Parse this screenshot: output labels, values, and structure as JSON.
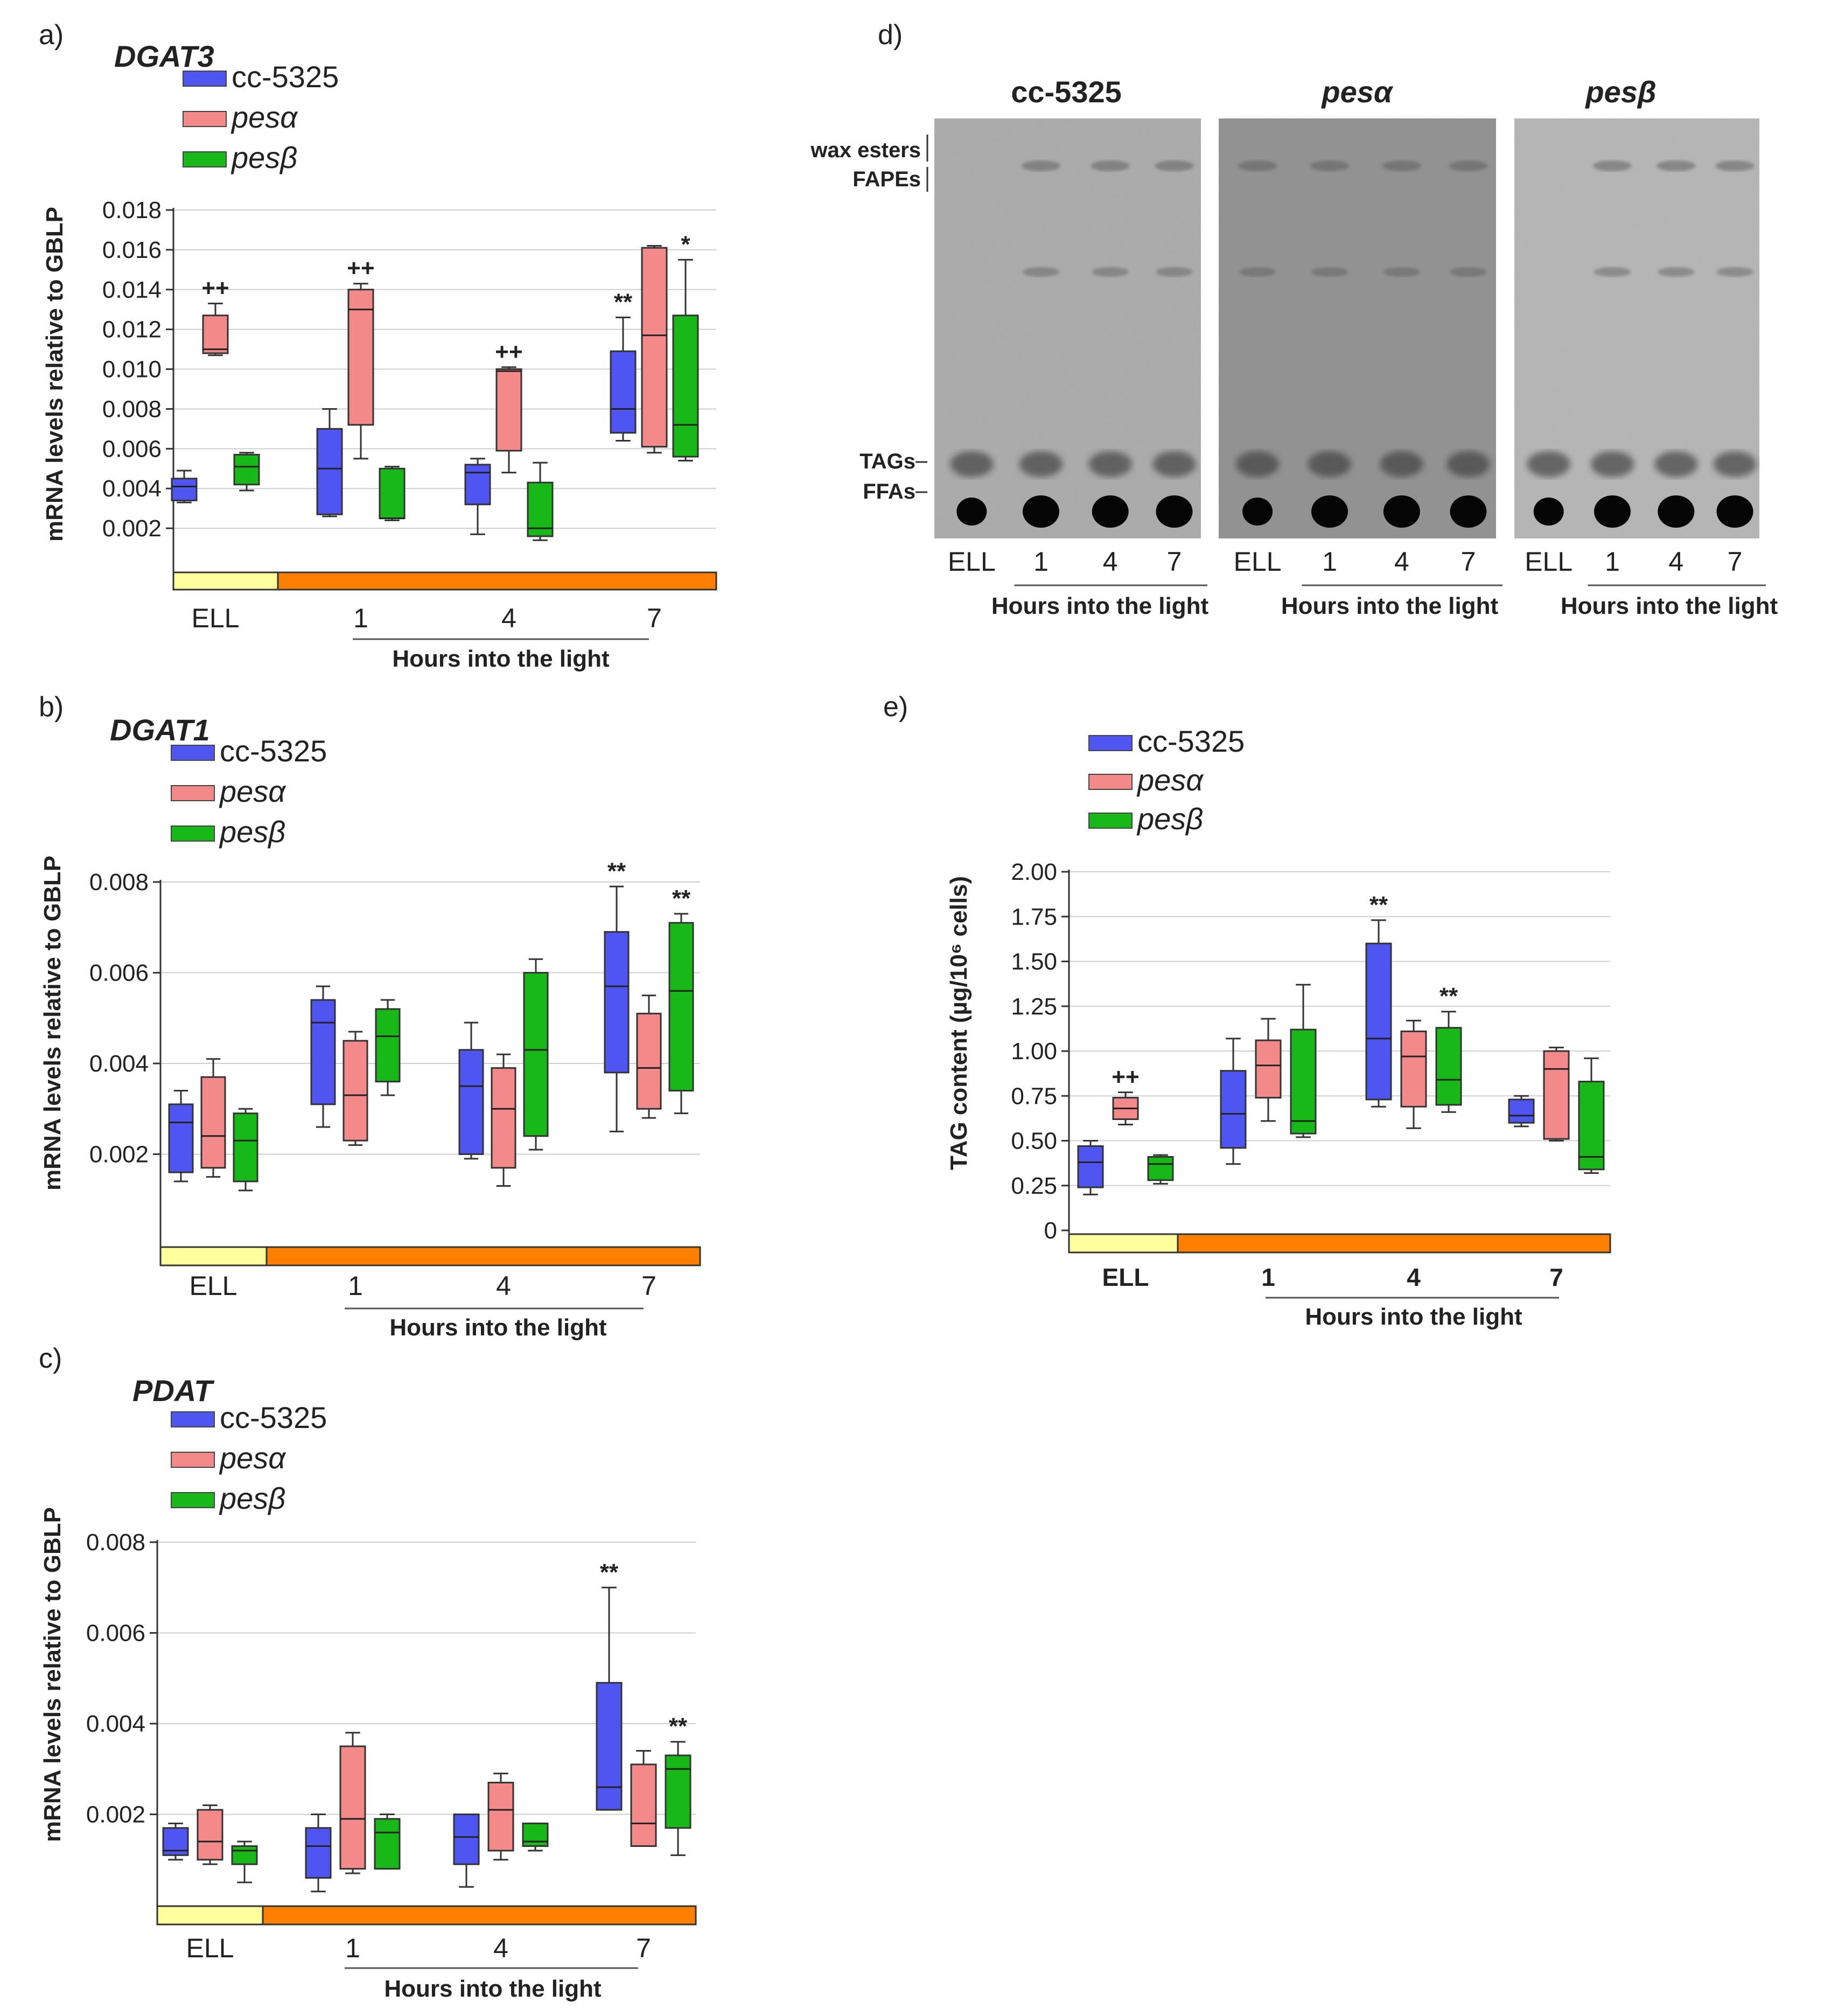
{
  "colors": {
    "cc5325": "#4f55f0",
    "pesa": "#f4898a",
    "pesb": "#17b817",
    "ell_bar": "#ffff9e",
    "light_bar": "#ff8000"
  },
  "legend": [
    {
      "key": "cc5325",
      "label": "cc-5325",
      "italic": false
    },
    {
      "key": "pesa",
      "label": "pesα",
      "italic": true
    },
    {
      "key": "pesb",
      "label": "pesβ",
      "italic": true
    }
  ],
  "charts": {
    "a": {
      "letter": "a)",
      "gene": "DGAT3",
      "ylabel": "mRNA levels relative to GBLP",
      "xlabel": "Hours into the light",
      "yticks": [
        "0.002",
        "0.004",
        "0.006",
        "0.008",
        "0.010",
        "0.012",
        "0.014",
        "0.016",
        "0.018"
      ],
      "xcats": [
        "ELL",
        "1",
        "4",
        "7"
      ],
      "stars": [
        "++",
        "++",
        "++",
        "**",
        "*"
      ]
    },
    "b": {
      "letter": "b)",
      "gene": "DGAT1",
      "ylabel": "mRNA levels relative to GBLP",
      "xlabel": "Hours into the light",
      "yticks": [
        "0.002",
        "0.004",
        "0.006",
        "0.008"
      ],
      "xcats": [
        "ELL",
        "1",
        "4",
        "7"
      ],
      "stars": [
        "**",
        "**"
      ]
    },
    "c": {
      "letter": "c)",
      "gene": "PDAT",
      "ylabel": "mRNA levels relative to GBLP",
      "xlabel": "Hours into the light",
      "yticks": [
        "0.002",
        "0.004",
        "0.006",
        "0.008"
      ],
      "xcats": [
        "ELL",
        "1",
        "4",
        "7"
      ],
      "stars": [
        "**",
        "**"
      ]
    },
    "e": {
      "letter": "e)",
      "ylabel": "TAG content (µg/10⁶ cells)",
      "xlabel": "Hours into the light",
      "yticks": [
        "0",
        "0.25",
        "0.50",
        "0.75",
        "1.00",
        "1.25",
        "1.50",
        "1.75",
        "2.00"
      ],
      "xcats": [
        "ELL",
        "1",
        "4",
        "7"
      ],
      "stars": [
        "++",
        "**",
        "**"
      ]
    }
  },
  "tlc": {
    "letter": "d)",
    "strains": [
      "cc-5325",
      "pesα",
      "pesβ"
    ],
    "lanes": [
      "ELL",
      "1",
      "4",
      "7"
    ],
    "xlabel": "Hours into the light",
    "bands": {
      "wax": "wax esters",
      "fapes": "FAPEs",
      "tags": "TAGs",
      "ffas": "FFAs"
    }
  },
  "chart_data": [
    {
      "type": "box",
      "title": "DGAT3",
      "panel": "a",
      "ylabel": "mRNA levels relative to GBLP",
      "xlabel": "Hours into the light",
      "categories": [
        "ELL",
        "1",
        "4",
        "7"
      ],
      "ylim": [
        0,
        0.018
      ],
      "series": [
        {
          "name": "cc-5325",
          "boxes": [
            {
              "min": 0.0033,
              "q1": 0.0034,
              "median": 0.0041,
              "q3": 0.0045,
              "max": 0.0049
            },
            {
              "min": 0.0026,
              "q1": 0.0027,
              "median": 0.005,
              "q3": 0.007,
              "max": 0.008
            },
            {
              "min": 0.0017,
              "q1": 0.0032,
              "median": 0.0048,
              "q3": 0.0052,
              "max": 0.0055
            },
            {
              "min": 0.0064,
              "q1": 0.0068,
              "median": 0.008,
              "q3": 0.0109,
              "max": 0.0126
            }
          ]
        },
        {
          "name": "pesα",
          "boxes": [
            {
              "min": 0.0107,
              "q1": 0.0108,
              "median": 0.011,
              "q3": 0.0127,
              "max": 0.0133
            },
            {
              "min": 0.0055,
              "q1": 0.0072,
              "median": 0.013,
              "q3": 0.014,
              "max": 0.0143
            },
            {
              "min": 0.0048,
              "q1": 0.0059,
              "median": 0.0099,
              "q3": 0.01,
              "max": 0.0101
            },
            {
              "min": 0.0058,
              "q1": 0.0061,
              "median": 0.0117,
              "q3": 0.0161,
              "max": 0.0162
            }
          ]
        },
        {
          "name": "pesβ",
          "boxes": [
            {
              "min": 0.0039,
              "q1": 0.0042,
              "median": 0.0051,
              "q3": 0.0057,
              "max": 0.0058
            },
            {
              "min": 0.0024,
              "q1": 0.0025,
              "median": 0.0025,
              "q3": 0.005,
              "max": 0.0051
            },
            {
              "min": 0.0014,
              "q1": 0.0016,
              "median": 0.002,
              "q3": 0.0043,
              "max": 0.0053
            },
            {
              "min": 0.0054,
              "q1": 0.0056,
              "median": 0.0072,
              "q3": 0.0127,
              "max": 0.0155
            }
          ]
        }
      ],
      "annotations": [
        {
          "text": "++",
          "category": "ELL",
          "series": "pesα"
        },
        {
          "text": "++",
          "category": "1",
          "series": "pesα"
        },
        {
          "text": "++",
          "category": "4",
          "series": "pesα"
        },
        {
          "text": "**",
          "category": "7",
          "series": "cc-5325"
        },
        {
          "text": "*",
          "category": "7",
          "series": "pesβ"
        }
      ]
    },
    {
      "type": "box",
      "title": "DGAT1",
      "panel": "b",
      "ylabel": "mRNA levels relative to GBLP",
      "xlabel": "Hours into the light",
      "categories": [
        "ELL",
        "1",
        "4",
        "7"
      ],
      "ylim": [
        0,
        0.008
      ],
      "series": [
        {
          "name": "cc-5325",
          "boxes": [
            {
              "min": 0.0014,
              "q1": 0.0016,
              "median": 0.0027,
              "q3": 0.0031,
              "max": 0.0034
            },
            {
              "min": 0.0026,
              "q1": 0.0031,
              "median": 0.0049,
              "q3": 0.0054,
              "max": 0.0057
            },
            {
              "min": 0.0019,
              "q1": 0.002,
              "median": 0.0035,
              "q3": 0.0043,
              "max": 0.0049
            },
            {
              "min": 0.0025,
              "q1": 0.0038,
              "median": 0.0057,
              "q3": 0.0069,
              "max": 0.0079
            }
          ]
        },
        {
          "name": "pesα",
          "boxes": [
            {
              "min": 0.0015,
              "q1": 0.0017,
              "median": 0.0024,
              "q3": 0.0037,
              "max": 0.0041
            },
            {
              "min": 0.0022,
              "q1": 0.0023,
              "median": 0.0033,
              "q3": 0.0045,
              "max": 0.0047
            },
            {
              "min": 0.0013,
              "q1": 0.0017,
              "median": 0.003,
              "q3": 0.0039,
              "max": 0.0042
            },
            {
              "min": 0.0028,
              "q1": 0.003,
              "median": 0.0039,
              "q3": 0.0051,
              "max": 0.0055
            }
          ]
        },
        {
          "name": "pesβ",
          "boxes": [
            {
              "min": 0.0012,
              "q1": 0.0014,
              "median": 0.0023,
              "q3": 0.0029,
              "max": 0.003
            },
            {
              "min": 0.0033,
              "q1": 0.0036,
              "median": 0.0046,
              "q3": 0.0052,
              "max": 0.0054
            },
            {
              "min": 0.0021,
              "q1": 0.0024,
              "median": 0.0043,
              "q3": 0.006,
              "max": 0.0063
            },
            {
              "min": 0.0029,
              "q1": 0.0034,
              "median": 0.0056,
              "q3": 0.0071,
              "max": 0.0073
            }
          ]
        }
      ],
      "annotations": [
        {
          "text": "**",
          "category": "7",
          "series": "cc-5325"
        },
        {
          "text": "**",
          "category": "7",
          "series": "pesβ"
        }
      ]
    },
    {
      "type": "box",
      "title": "PDAT",
      "panel": "c",
      "ylabel": "mRNA levels relative to GBLP",
      "xlabel": "Hours into the light",
      "categories": [
        "ELL",
        "1",
        "4",
        "7"
      ],
      "ylim": [
        0,
        0.008
      ],
      "series": [
        {
          "name": "cc-5325",
          "boxes": [
            {
              "min": 0.001,
              "q1": 0.0011,
              "median": 0.0012,
              "q3": 0.0017,
              "max": 0.0018
            },
            {
              "min": 0.0003,
              "q1": 0.0006,
              "median": 0.0013,
              "q3": 0.0017,
              "max": 0.002
            },
            {
              "min": 0.0004,
              "q1": 0.0009,
              "median": 0.0015,
              "q3": 0.002,
              "max": 0.002
            },
            {
              "min": 0.0021,
              "q1": 0.0021,
              "median": 0.0026,
              "q3": 0.0049,
              "max": 0.007
            }
          ]
        },
        {
          "name": "pesα",
          "boxes": [
            {
              "min": 0.0009,
              "q1": 0.001,
              "median": 0.0014,
              "q3": 0.0021,
              "max": 0.0022
            },
            {
              "min": 0.0007,
              "q1": 0.0008,
              "median": 0.0019,
              "q3": 0.0035,
              "max": 0.0038
            },
            {
              "min": 0.001,
              "q1": 0.0012,
              "median": 0.0021,
              "q3": 0.0027,
              "max": 0.0029
            },
            {
              "min": 0.0013,
              "q1": 0.0013,
              "median": 0.0018,
              "q3": 0.0031,
              "max": 0.0034
            }
          ]
        },
        {
          "name": "pesβ",
          "boxes": [
            {
              "min": 0.0005,
              "q1": 0.0009,
              "median": 0.0012,
              "q3": 0.0013,
              "max": 0.0014
            },
            {
              "min": 0.0008,
              "q1": 0.0008,
              "median": 0.0016,
              "q3": 0.0019,
              "max": 0.002
            },
            {
              "min": 0.0012,
              "q1": 0.0013,
              "median": 0.0014,
              "q3": 0.0018,
              "max": 0.0018
            },
            {
              "min": 0.0011,
              "q1": 0.0017,
              "median": 0.003,
              "q3": 0.0033,
              "max": 0.0036
            }
          ]
        }
      ],
      "annotations": [
        {
          "text": "**",
          "category": "7",
          "series": "cc-5325"
        },
        {
          "text": "**",
          "category": "7",
          "series": "pesβ"
        }
      ]
    },
    {
      "type": "box",
      "title": "",
      "panel": "e",
      "ylabel": "TAG content (µg/10⁶ cells)",
      "xlabel": "Hours into the light",
      "categories": [
        "ELL",
        "1",
        "4",
        "7"
      ],
      "ylim": [
        0,
        2.0
      ],
      "series": [
        {
          "name": "cc-5325",
          "boxes": [
            {
              "min": 0.2,
              "q1": 0.24,
              "median": 0.38,
              "q3": 0.47,
              "max": 0.5
            },
            {
              "min": 0.37,
              "q1": 0.46,
              "median": 0.65,
              "q3": 0.89,
              "max": 1.07
            },
            {
              "min": 0.69,
              "q1": 0.73,
              "median": 1.07,
              "q3": 1.6,
              "max": 1.73
            },
            {
              "min": 0.58,
              "q1": 0.6,
              "median": 0.64,
              "q3": 0.73,
              "max": 0.75
            }
          ]
        },
        {
          "name": "pesα",
          "boxes": [
            {
              "min": 0.59,
              "q1": 0.62,
              "median": 0.68,
              "q3": 0.74,
              "max": 0.77
            },
            {
              "min": 0.61,
              "q1": 0.74,
              "median": 0.92,
              "q3": 1.06,
              "max": 1.18
            },
            {
              "min": 0.57,
              "q1": 0.69,
              "median": 0.97,
              "q3": 1.11,
              "max": 1.17
            },
            {
              "min": 0.5,
              "q1": 0.51,
              "median": 0.9,
              "q3": 1.0,
              "max": 1.02
            }
          ]
        },
        {
          "name": "pesβ",
          "boxes": [
            {
              "min": 0.26,
              "q1": 0.28,
              "median": 0.37,
              "q3": 0.41,
              "max": 0.42
            },
            {
              "min": 0.52,
              "q1": 0.54,
              "median": 0.61,
              "q3": 1.12,
              "max": 1.37
            },
            {
              "min": 0.66,
              "q1": 0.7,
              "median": 0.84,
              "q3": 1.13,
              "max": 1.22
            },
            {
              "min": 0.32,
              "q1": 0.34,
              "median": 0.41,
              "q3": 0.83,
              "max": 0.96
            }
          ]
        }
      ],
      "annotations": [
        {
          "text": "++",
          "category": "ELL",
          "series": "pesα"
        },
        {
          "text": "**",
          "category": "4",
          "series": "cc-5325"
        },
        {
          "text": "**",
          "category": "4",
          "series": "pesβ"
        }
      ]
    }
  ]
}
